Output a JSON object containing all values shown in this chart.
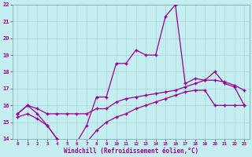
{
  "xlabel": "Windchill (Refroidissement éolien,°C)",
  "background_color": "#c5eef0",
  "line_color": "#990099",
  "grid_color": "#aad4d8",
  "hours": [
    0,
    1,
    2,
    3,
    4,
    5,
    6,
    7,
    8,
    9,
    10,
    11,
    12,
    13,
    14,
    15,
    16,
    17,
    18,
    19,
    20,
    21,
    22,
    23
  ],
  "line1": [
    15.5,
    16.0,
    15.5,
    14.8,
    14.0,
    13.8,
    13.8,
    14.8,
    16.5,
    16.5,
    18.5,
    18.5,
    19.3,
    19.0,
    19.0,
    21.3,
    22.0,
    17.3,
    17.6,
    17.5,
    18.0,
    17.3,
    17.1,
    16.0
  ],
  "line2": [
    15.5,
    16.0,
    15.8,
    15.5,
    15.5,
    15.5,
    15.5,
    15.5,
    15.8,
    15.8,
    16.2,
    16.4,
    16.5,
    16.6,
    16.7,
    16.8,
    16.9,
    17.1,
    17.3,
    17.5,
    17.5,
    17.4,
    17.2,
    16.9
  ],
  "line3": [
    15.3,
    15.5,
    15.2,
    14.8,
    14.0,
    13.8,
    13.8,
    13.8,
    14.5,
    15.0,
    15.3,
    15.5,
    15.8,
    16.0,
    16.2,
    16.4,
    16.6,
    16.8,
    16.9,
    16.9,
    16.0,
    16.0,
    16.0,
    16.0
  ],
  "ylim": [
    14,
    22
  ],
  "yticks": [
    14,
    15,
    16,
    17,
    18,
    19,
    20,
    21,
    22
  ],
  "xlim": [
    -0.5,
    23.5
  ]
}
